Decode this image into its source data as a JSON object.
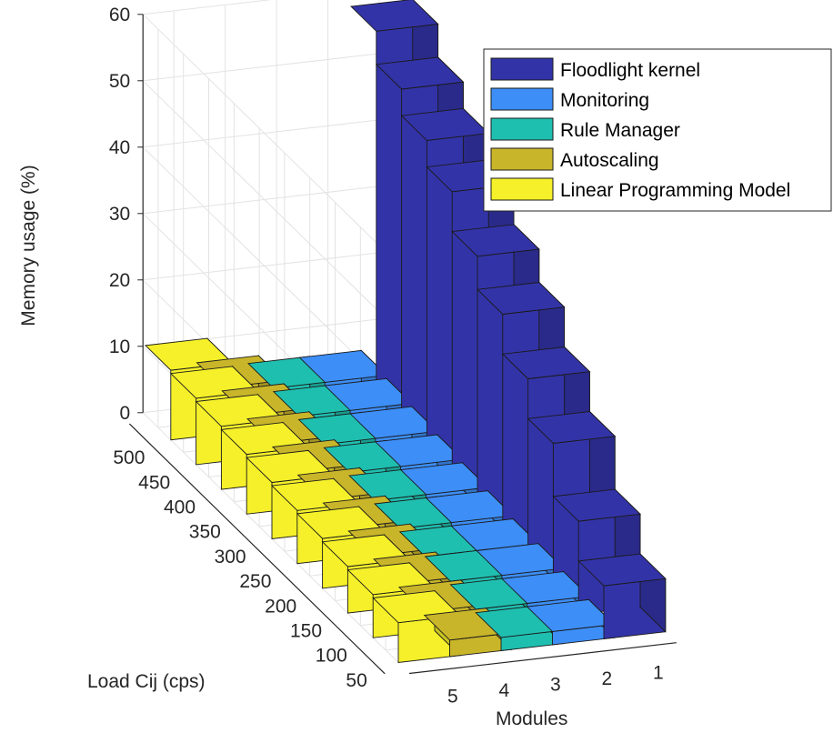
{
  "chart_data": {
    "type": "bar3d",
    "xlabel": "Modules",
    "ylabel": "Load Cij (cps)",
    "zlabel": "Memory usage (%)",
    "x_ticks": [
      "1",
      "2",
      "3",
      "4",
      "5"
    ],
    "y_ticks": [
      "50",
      "100",
      "150",
      "200",
      "250",
      "300",
      "350",
      "400",
      "450",
      "500"
    ],
    "z_ticks": [
      "0",
      "10",
      "20",
      "30",
      "40",
      "50",
      "60"
    ],
    "zlim": [
      0,
      60
    ],
    "grid": true,
    "legend_position": "top-right",
    "loads": [
      50,
      100,
      150,
      200,
      250,
      300,
      350,
      400,
      450,
      500
    ],
    "series": [
      {
        "name": "Floodlight kernel",
        "module": 1,
        "color": "#3333a8",
        "values": [
          8,
          14,
          22,
          28,
          34,
          39,
          45,
          49,
          53,
          58
        ]
      },
      {
        "name": "Monitoring",
        "module": 2,
        "color": "#3d8ef7",
        "values": [
          2,
          2.5,
          3,
          3,
          3.5,
          4,
          4.5,
          5,
          5.5,
          6
        ]
      },
      {
        "name": "Rule Manager",
        "module": 3,
        "color": "#1fbfb0",
        "values": [
          2,
          2.5,
          3,
          3,
          3.5,
          4,
          4.5,
          5,
          5.5,
          6
        ]
      },
      {
        "name": "Autoscaling",
        "module": 4,
        "color": "#c9b52a",
        "values": [
          2.5,
          3,
          3.5,
          4,
          4.5,
          5,
          5.5,
          6,
          6.5,
          7
        ]
      },
      {
        "name": "Linear Programming Model",
        "module": 5,
        "color": "#f5f029",
        "values": [
          6,
          6.5,
          7,
          7.5,
          8,
          8.5,
          9,
          9.5,
          10,
          10.5
        ]
      }
    ]
  }
}
